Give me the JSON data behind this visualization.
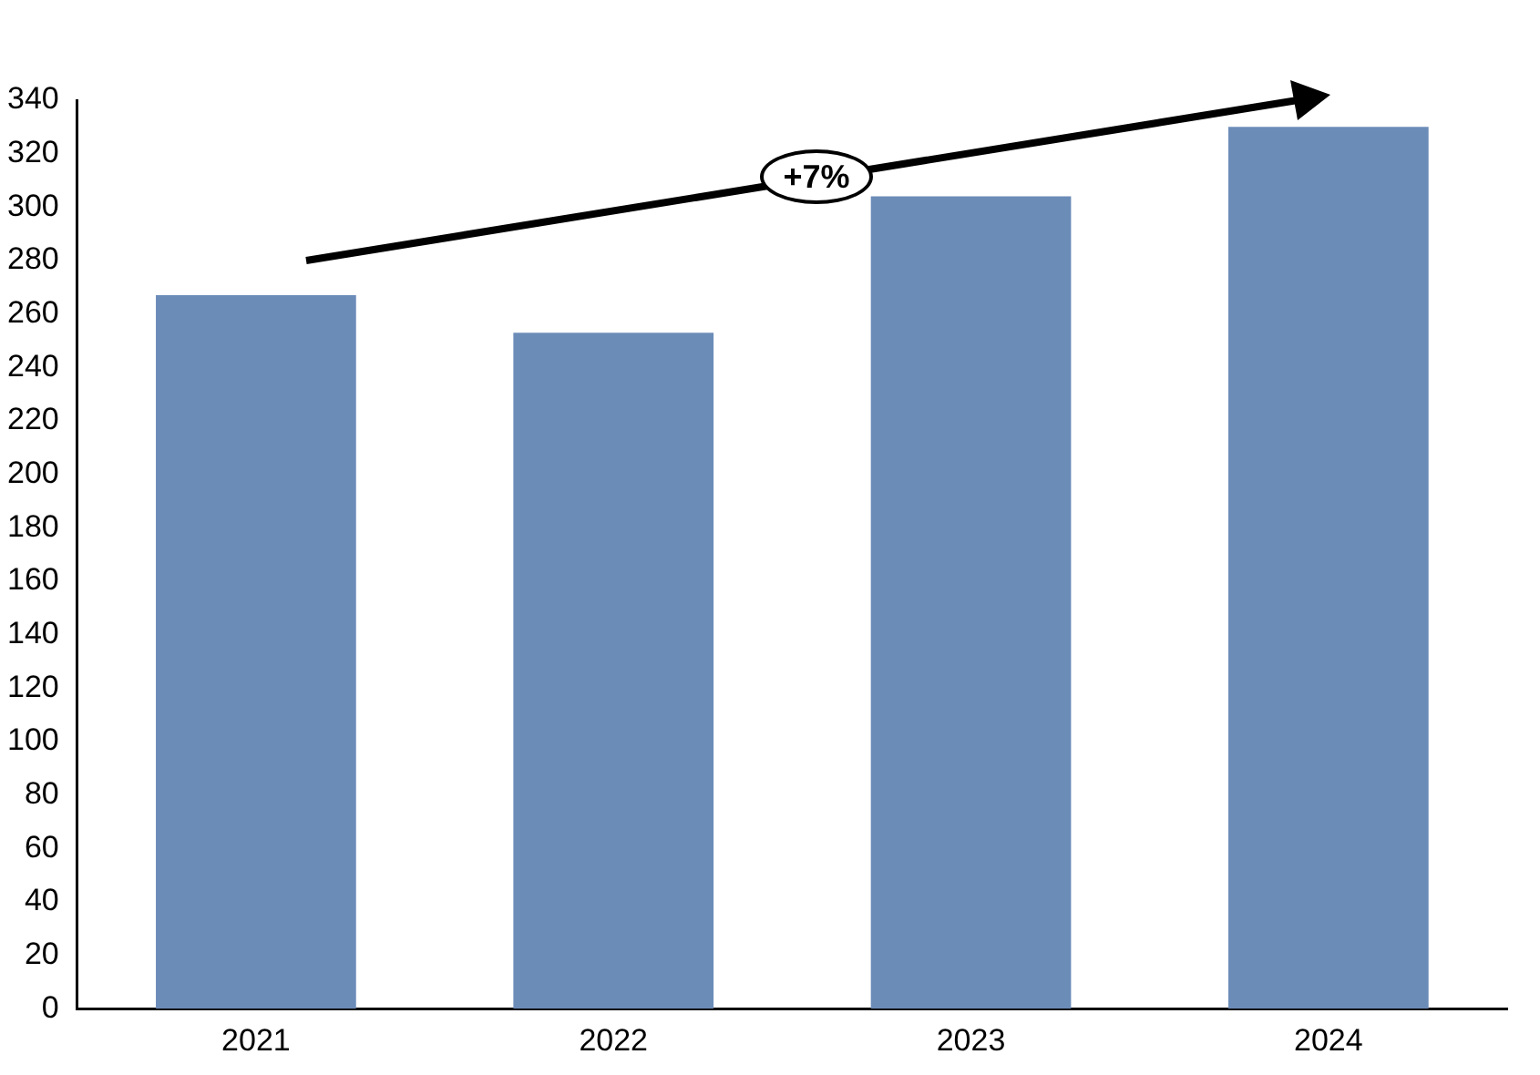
{
  "chart_data": {
    "type": "bar",
    "categories": [
      "2021",
      "2022",
      "2023",
      "2024"
    ],
    "values": [
      267,
      253,
      304,
      330
    ],
    "color": "#6c8cb8",
    "ylim": [
      0,
      340
    ],
    "yticks": [
      0,
      20,
      40,
      60,
      80,
      100,
      120,
      140,
      160,
      180,
      200,
      220,
      240,
      260,
      280,
      300,
      320,
      340
    ],
    "grid": false,
    "legend": false,
    "annotations": [
      "+7%"
    ]
  }
}
